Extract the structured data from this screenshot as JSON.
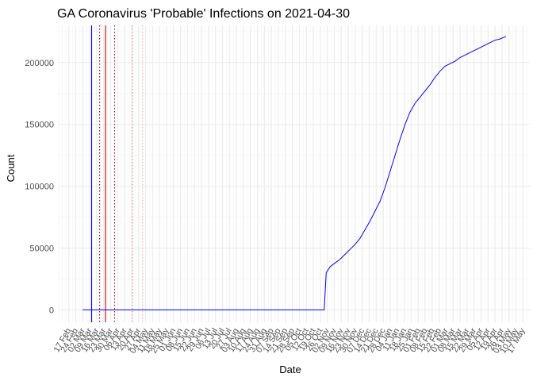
{
  "chart_data": {
    "type": "line",
    "title": "GA Coronavirus 'Probable' Infections on 2021-04-30",
    "xlabel": "Date",
    "ylabel": "Count",
    "x_type": "date",
    "xlim": [
      "2020-02-07",
      "2021-05-24"
    ],
    "ylim": [
      -10000,
      230000
    ],
    "y_ticks": [
      0,
      50000,
      100000,
      150000,
      200000
    ],
    "x_tick_labels": [
      "17 Feb",
      "24 Feb",
      "02 Mar",
      "09 Mar",
      "16 Mar",
      "23 Mar",
      "30 Mar",
      "06 Apr",
      "13 Apr",
      "20 Apr",
      "27 Apr",
      "04 May",
      "11 May",
      "18 May",
      "25 May",
      "01 Jun",
      "08 Jun",
      "15 Jun",
      "22 Jun",
      "29 Jun",
      "06 Jul",
      "13 Jul",
      "20 Jul",
      "27 Jul",
      "03 Aug",
      "10 Aug",
      "17 Aug",
      "24 Aug",
      "31 Aug",
      "07 Sep",
      "14 Sep",
      "21 Sep",
      "28 Sep",
      "05 Oct",
      "12 Oct",
      "19 Oct",
      "26 Oct",
      "02 Nov",
      "09 Nov",
      "16 Nov",
      "23 Nov",
      "30 Nov",
      "07 Dec",
      "14 Dec",
      "21 Dec",
      "28 Dec",
      "04 Jan",
      "11 Jan",
      "18 Jan",
      "25 Jan",
      "01 Feb",
      "08 Feb",
      "15 Feb",
      "22 Feb",
      "01 Mar",
      "08 Mar",
      "15 Mar",
      "22 Mar",
      "29 Mar",
      "05 Apr",
      "12 Apr",
      "19 Apr",
      "26 Apr",
      "03 May",
      "10 May",
      "17 May"
    ],
    "grid": true,
    "legend": "none",
    "series": [
      {
        "color": "#0000ff",
        "x": [
          "2020-03-02",
          "2020-06-01",
          "2020-10-30",
          "2020-11-01",
          "2020-11-05",
          "2020-11-10",
          "2020-11-15",
          "2020-11-20",
          "2020-11-25",
          "2020-11-30",
          "2020-12-05",
          "2020-12-10",
          "2020-12-15",
          "2020-12-20",
          "2020-12-25",
          "2020-12-30",
          "2021-01-04",
          "2021-01-09",
          "2021-01-14",
          "2021-01-19",
          "2021-01-24",
          "2021-01-29",
          "2021-02-03",
          "2021-02-08",
          "2021-02-13",
          "2021-02-18",
          "2021-02-23",
          "2021-02-28",
          "2021-03-05",
          "2021-03-10",
          "2021-03-15",
          "2021-03-20",
          "2021-03-25",
          "2021-03-30",
          "2021-04-04",
          "2021-04-09",
          "2021-04-14",
          "2021-04-19",
          "2021-04-24",
          "2021-04-30"
        ],
        "y": [
          0,
          0,
          0,
          30000,
          35000,
          38000,
          41000,
          45000,
          49000,
          53000,
          58000,
          65000,
          72000,
          80000,
          88000,
          99000,
          112000,
          125000,
          138000,
          150000,
          160000,
          167000,
          172000,
          177000,
          182000,
          188000,
          193000,
          197000,
          199000,
          201000,
          204000,
          206000,
          208000,
          210000,
          212000,
          214000,
          216000,
          218000,
          219000,
          221000
        ]
      }
    ],
    "reference_lines": [
      {
        "x": "2020-03-11",
        "color": "#0000ff",
        "style": "solid"
      },
      {
        "x": "2020-03-19",
        "color": "#8b0000",
        "style": "dotted"
      },
      {
        "x": "2020-03-25",
        "color": "#cc0000",
        "style": "solid"
      },
      {
        "x": "2020-04-03",
        "color": "#cc0000",
        "style": "dotted"
      },
      {
        "x": "2020-04-21",
        "color": "#ff8080",
        "style": "dotted"
      },
      {
        "x": "2020-05-01",
        "color": "#ffaaaa",
        "style": "dotted"
      }
    ]
  }
}
